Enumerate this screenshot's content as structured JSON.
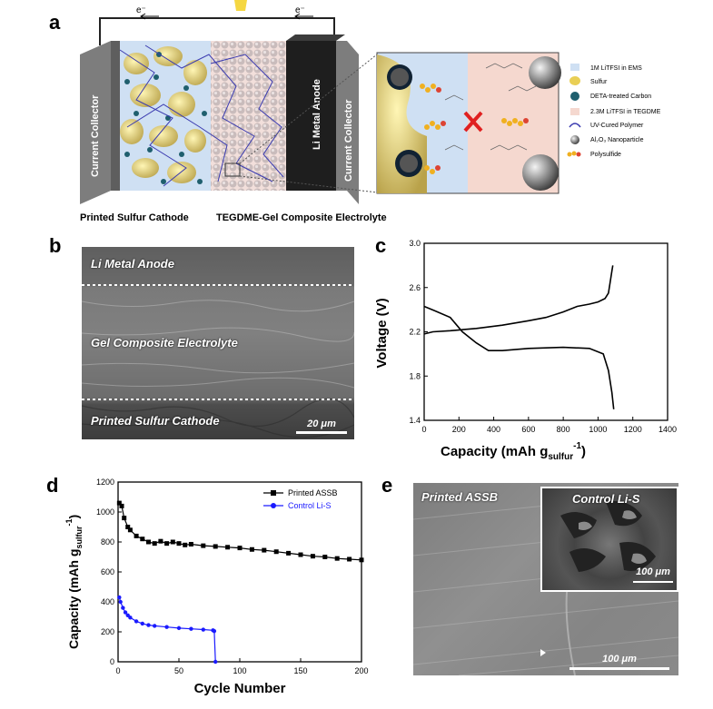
{
  "panels": {
    "a": "a",
    "b": "b",
    "c": "c",
    "d": "d",
    "e": "e"
  },
  "panel_a": {
    "electron_left": "e⁻",
    "electron_right": "e⁻",
    "left_collector": "Current Collector",
    "right_collector": "Current Collector",
    "anode": "Li Metal Anode",
    "caption_cathode": "Printed Sulfur Cathode",
    "caption_electrolyte": "TEGDME-Gel Composite Electrolyte",
    "legend": [
      {
        "label": "1M LiTFSI in EMS",
        "color": "#cfe0f3"
      },
      {
        "label": "Sulfur",
        "color": "#e9cf55"
      },
      {
        "label": "DETA-treated Carbon",
        "color": "#1f5f6e"
      },
      {
        "label": "2.3M LiTFSI in TEGDME",
        "color": "#f5d8cf"
      },
      {
        "label": "UV-Cured Polymer",
        "color": "#3b3bb0"
      },
      {
        "label": "Al₂O₃ Nanoparticle",
        "color": "#a0a0a0"
      },
      {
        "label": "Polysulfide",
        "color": "#f0b020"
      }
    ]
  },
  "panel_b": {
    "label_top": "Li Metal Anode",
    "label_mid": "Gel Composite Electrolyte",
    "label_bot": "Printed Sulfur Cathode",
    "scale": "20 μm"
  },
  "panel_e": {
    "label_main": "Printed ASSB",
    "label_inset": "Control Li-S",
    "scale_main": "100 μm",
    "scale_inset": "100 μm"
  },
  "chart_data": [
    {
      "type": "line",
      "panel": "c",
      "xlabel": "Capacity (mAh g",
      "xlabel_sub": "sulfur",
      "xlabel_sup": "-1",
      "xlabel_end": ")",
      "ylabel": "Voltage (V)",
      "xlim": [
        0,
        1400
      ],
      "ylim": [
        1.4,
        3.0
      ],
      "xticks": [
        "0",
        "200",
        "400",
        "600",
        "800",
        "1000",
        "1200",
        "1400"
      ],
      "yticks": [
        "1.4",
        "1.8",
        "2.2",
        "2.6",
        "3.0"
      ],
      "xtick_values": [
        0,
        200,
        400,
        600,
        800,
        1000,
        1200,
        1400
      ],
      "ytick_values": [
        1.4,
        1.8,
        2.2,
        2.6,
        3.0
      ],
      "series": [
        {
          "name": "discharge",
          "x": [
            0,
            60,
            150,
            220,
            300,
            370,
            450,
            600,
            800,
            950,
            1030,
            1060,
            1080,
            1090
          ],
          "y": [
            2.43,
            2.39,
            2.33,
            2.2,
            2.1,
            2.03,
            2.03,
            2.05,
            2.06,
            2.05,
            2.0,
            1.85,
            1.65,
            1.5
          ]
        },
        {
          "name": "charge",
          "x": [
            0,
            50,
            150,
            300,
            450,
            600,
            700,
            800,
            880,
            950,
            1000,
            1040,
            1060,
            1070,
            1080,
            1085
          ],
          "y": [
            2.18,
            2.2,
            2.21,
            2.23,
            2.26,
            2.3,
            2.33,
            2.38,
            2.43,
            2.45,
            2.47,
            2.5,
            2.55,
            2.65,
            2.75,
            2.8
          ]
        }
      ]
    },
    {
      "type": "scatter-line",
      "panel": "d",
      "xlabel": "Cycle Number",
      "ylabel": "Capacity (mAh g",
      "ylabel_sub": "sulfur",
      "ylabel_sup": "-1",
      "ylabel_end": ")",
      "xlim": [
        0,
        200
      ],
      "ylim": [
        0,
        1200
      ],
      "xticks": [
        "0",
        "50",
        "100",
        "150",
        "200"
      ],
      "yticks": [
        "0",
        "200",
        "400",
        "600",
        "800",
        "1000",
        "1200"
      ],
      "xtick_values": [
        0,
        50,
        100,
        150,
        200
      ],
      "ytick_values": [
        0,
        200,
        400,
        600,
        800,
        1000,
        1200
      ],
      "legend": [
        "Printed ASSB",
        "Control Li-S"
      ],
      "series": [
        {
          "name": "Printed ASSB",
          "color": "#000000",
          "marker": "square",
          "x": [
            1,
            3,
            5,
            8,
            10,
            15,
            20,
            25,
            30,
            35,
            40,
            45,
            50,
            55,
            60,
            70,
            80,
            90,
            100,
            110,
            120,
            130,
            140,
            150,
            160,
            170,
            180,
            190,
            200
          ],
          "y": [
            1060,
            1040,
            960,
            900,
            880,
            840,
            820,
            800,
            790,
            805,
            790,
            800,
            790,
            780,
            785,
            775,
            770,
            765,
            760,
            750,
            745,
            735,
            725,
            715,
            705,
            700,
            690,
            685,
            680
          ]
        },
        {
          "name": "Control Li-S",
          "color": "#1a1aff",
          "marker": "circle",
          "x": [
            1,
            2,
            4,
            6,
            8,
            10,
            15,
            20,
            25,
            30,
            40,
            50,
            60,
            70,
            78,
            79,
            80
          ],
          "y": [
            430,
            400,
            360,
            330,
            310,
            295,
            270,
            255,
            245,
            240,
            232,
            225,
            220,
            215,
            210,
            205,
            0
          ]
        }
      ]
    }
  ]
}
